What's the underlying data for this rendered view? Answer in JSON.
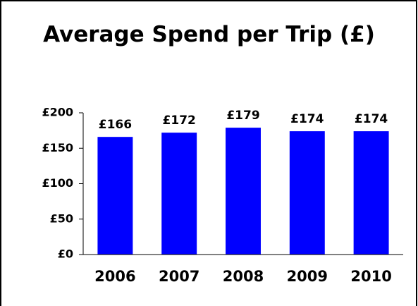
{
  "chart_data": {
    "type": "bar",
    "title": "Average Spend per Trip (£)",
    "categories": [
      "2006",
      "2007",
      "2008",
      "2009",
      "2010"
    ],
    "values": [
      166,
      172,
      179,
      174,
      174
    ],
    "value_labels": [
      "£166",
      "£172",
      "£179",
      "£174",
      "£174"
    ],
    "color": "#0000ff",
    "ylim": [
      0,
      200
    ],
    "yticks": [
      {
        "value": 0,
        "label": "£0"
      },
      {
        "value": 50,
        "label": "£50"
      },
      {
        "value": 100,
        "label": "£100"
      },
      {
        "value": 150,
        "label": "£150"
      },
      {
        "value": 200,
        "label": "£200"
      }
    ],
    "grid": false
  }
}
